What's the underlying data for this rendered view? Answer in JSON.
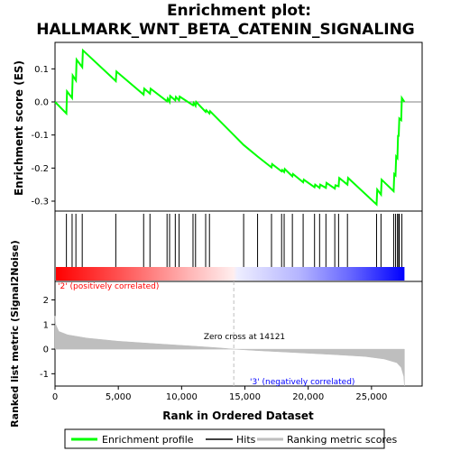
{
  "chart_data": {
    "type": "line",
    "title_line1": "Enrichment plot:",
    "title_line2": "HALLMARK_WNT_BETA_CATENIN_SIGNALING",
    "es_panel": {
      "ylabel": "Enrichment score (ES)",
      "ylim": [
        -0.33,
        0.18
      ],
      "yticks": [
        0.1,
        0.0,
        -0.1,
        -0.2,
        -0.3
      ],
      "ytick_labels": [
        "0.1",
        "0.0",
        "-0.1",
        "-0.2",
        "-0.3"
      ],
      "series_name": "Enrichment profile",
      "color": "#00ff00",
      "points": [
        [
          0,
          0.0
        ],
        [
          900,
          -0.035
        ],
        [
          950,
          0.032
        ],
        [
          1350,
          0.012
        ],
        [
          1400,
          0.08
        ],
        [
          1650,
          0.065
        ],
        [
          1700,
          0.128
        ],
        [
          2150,
          0.105
        ],
        [
          2200,
          0.156
        ],
        [
          4800,
          0.063
        ],
        [
          4850,
          0.092
        ],
        [
          7000,
          0.022
        ],
        [
          7050,
          0.04
        ],
        [
          7500,
          0.025
        ],
        [
          7550,
          0.04
        ],
        [
          8850,
          0.002
        ],
        [
          8900,
          0.01
        ],
        [
          9050,
          0.0
        ],
        [
          9100,
          0.018
        ],
        [
          9500,
          0.005
        ],
        [
          9550,
          0.015
        ],
        [
          9800,
          0.005
        ],
        [
          9850,
          0.016
        ],
        [
          10900,
          -0.01
        ],
        [
          10950,
          -0.003
        ],
        [
          11100,
          -0.012
        ],
        [
          11150,
          0.0
        ],
        [
          11900,
          -0.03
        ],
        [
          11950,
          -0.025
        ],
        [
          12200,
          -0.035
        ],
        [
          12250,
          -0.028
        ],
        [
          14900,
          -0.13
        ],
        [
          16000,
          -0.165
        ],
        [
          17100,
          -0.198
        ],
        [
          17150,
          -0.188
        ],
        [
          17900,
          -0.21
        ],
        [
          17950,
          -0.206
        ],
        [
          18100,
          -0.212
        ],
        [
          18150,
          -0.203
        ],
        [
          18750,
          -0.225
        ],
        [
          18800,
          -0.218
        ],
        [
          19600,
          -0.243
        ],
        [
          19650,
          -0.235
        ],
        [
          20500,
          -0.258
        ],
        [
          20550,
          -0.25
        ],
        [
          20900,
          -0.26
        ],
        [
          20950,
          -0.25
        ],
        [
          21400,
          -0.26
        ],
        [
          21450,
          -0.245
        ],
        [
          22100,
          -0.262
        ],
        [
          22150,
          -0.252
        ],
        [
          22400,
          -0.255
        ],
        [
          22450,
          -0.23
        ],
        [
          23100,
          -0.25
        ],
        [
          23150,
          -0.23
        ],
        [
          25400,
          -0.31
        ],
        [
          25450,
          -0.265
        ],
        [
          25750,
          -0.28
        ],
        [
          25800,
          -0.235
        ],
        [
          26750,
          -0.27
        ],
        [
          26800,
          -0.218
        ],
        [
          26900,
          -0.222
        ],
        [
          26950,
          -0.165
        ],
        [
          27050,
          -0.17
        ],
        [
          27100,
          -0.1
        ],
        [
          27150,
          -0.105
        ],
        [
          27200,
          -0.05
        ],
        [
          27350,
          -0.055
        ],
        [
          27400,
          0.012
        ],
        [
          27600,
          0.0
        ]
      ]
    },
    "hits": {
      "series_name": "Hits",
      "positions": [
        900,
        1350,
        1650,
        2150,
        4800,
        7000,
        7500,
        8850,
        9050,
        9500,
        9800,
        10900,
        11100,
        11900,
        12200,
        14900,
        16000,
        17100,
        17900,
        18100,
        18750,
        19600,
        20500,
        20900,
        21400,
        22100,
        22400,
        23100,
        25400,
        25750,
        26750,
        26900,
        27050,
        27150,
        27200,
        27400
      ]
    },
    "rank_panel": {
      "ylabel": "Ranked list metric (Signal2Noise)",
      "xlabel": "Rank in Ordered Dataset",
      "ylim": [
        -1.5,
        2.75
      ],
      "yticks": [
        2,
        1,
        0,
        -1
      ],
      "ytick_labels": [
        "2",
        "1",
        "0",
        "-1"
      ],
      "xlim": [
        0,
        29000
      ],
      "xticks": [
        0,
        5000,
        10000,
        15000,
        20000,
        25000
      ],
      "xtick_labels": [
        "0",
        "5,000",
        "10,000",
        "15,000",
        "20,000",
        "25,000"
      ],
      "series_name": "Ranking metric scores",
      "profile": [
        [
          0,
          1.35
        ],
        [
          60,
          1.0
        ],
        [
          300,
          0.72
        ],
        [
          1000,
          0.58
        ],
        [
          2500,
          0.45
        ],
        [
          5000,
          0.32
        ],
        [
          8000,
          0.22
        ],
        [
          11000,
          0.12
        ],
        [
          13000,
          0.05
        ],
        [
          14121,
          0.0
        ],
        [
          16000,
          -0.06
        ],
        [
          19000,
          -0.14
        ],
        [
          22000,
          -0.22
        ],
        [
          24500,
          -0.3
        ],
        [
          26000,
          -0.4
        ],
        [
          27000,
          -0.55
        ],
        [
          27350,
          -0.75
        ],
        [
          27550,
          -1.1
        ],
        [
          27600,
          -1.5
        ]
      ],
      "zero_cross_label": "Zero cross at 14121",
      "zero_cross_rank": 14121,
      "pos_label": "'2' (positively correlated)",
      "neg_label": "'3' (negatively correlated)",
      "pos_color": "#ff0000",
      "neg_color": "#0000ff"
    },
    "total_ranks": 27600
  },
  "legend": {
    "items": [
      {
        "label": "Enrichment profile",
        "color": "#00ff00"
      },
      {
        "label": "Hits",
        "color": "#000000"
      },
      {
        "label": "Ranking metric scores",
        "color": "#bebebe"
      }
    ]
  }
}
